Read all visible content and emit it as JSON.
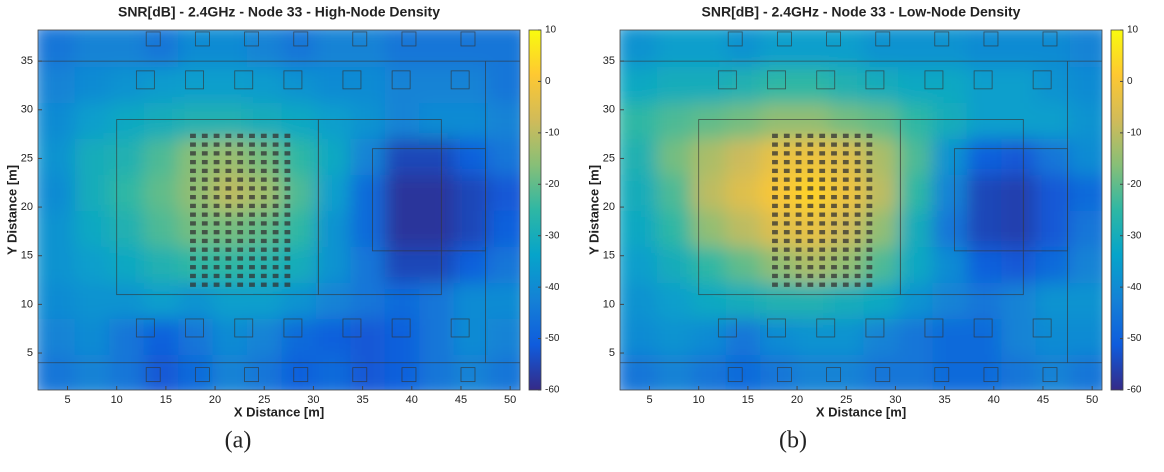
{
  "chart_data": [
    {
      "type": "heatmap",
      "title": "SNR[dB] - 2.4GHz - Node 33 - High-Node Density",
      "xlabel": "X Distance [m]",
      "ylabel": "Y Distance [m]",
      "x": [
        4,
        7.5,
        11,
        14.5,
        18,
        21.5,
        25,
        28.5,
        32,
        35.5,
        39,
        42.5,
        46,
        49.5
      ],
      "y": [
        3,
        6.7,
        10.4,
        14.1,
        17.8,
        21.5,
        25.2,
        28.9,
        32.6,
        36.3
      ],
      "z": [
        [
          -45,
          -42,
          -45,
          -52,
          -48,
          -42,
          -45,
          -50,
          -48,
          -52,
          -50,
          -45,
          -42,
          -45
        ],
        [
          -42,
          -40,
          -45,
          -50,
          -45,
          -40,
          -42,
          -48,
          -50,
          -52,
          -50,
          -45,
          -40,
          -42
        ],
        [
          -40,
          -38,
          -38,
          -35,
          -38,
          -35,
          -35,
          -38,
          -42,
          -45,
          -48,
          -45,
          -40,
          -40
        ],
        [
          -38,
          -35,
          -32,
          -28,
          -25,
          -25,
          -27,
          -30,
          -38,
          -45,
          -55,
          -55,
          -50,
          -45
        ],
        [
          -38,
          -32,
          -28,
          -22,
          -18,
          -18,
          -20,
          -25,
          -38,
          -48,
          -58,
          -58,
          -55,
          -50
        ],
        [
          -40,
          -30,
          -25,
          -20,
          -15,
          -10,
          -13,
          -22,
          -35,
          -48,
          -58,
          -58,
          -55,
          -52
        ],
        [
          -38,
          -30,
          -28,
          -22,
          -16,
          -14,
          -18,
          -25,
          -32,
          -42,
          -55,
          -55,
          -50,
          -45
        ],
        [
          -40,
          -35,
          -32,
          -30,
          -28,
          -28,
          -30,
          -32,
          -35,
          -38,
          -42,
          -40,
          -40,
          -42
        ],
        [
          -42,
          -40,
          -38,
          -36,
          -35,
          -35,
          -36,
          -38,
          -40,
          -40,
          -42,
          -42,
          -42,
          -45
        ],
        [
          -45,
          -42,
          -42,
          -45,
          -40,
          -40,
          -42,
          -45,
          -42,
          -42,
          -45,
          -45,
          -45,
          -45
        ]
      ],
      "xlim": [
        2,
        51
      ],
      "ylim": [
        1.2,
        38.2
      ],
      "xticks": [
        5,
        10,
        15,
        20,
        25,
        30,
        35,
        40,
        45,
        50
      ],
      "yticks": [
        5,
        10,
        15,
        20,
        25,
        30,
        35
      ],
      "clim": [
        -60,
        10
      ],
      "cticks": [
        -60,
        -50,
        -40,
        -30,
        -20,
        -10,
        0,
        10
      ],
      "colormap": [
        "#352a87",
        "#0f5cdd",
        "#1481d6",
        "#06a4ca",
        "#2eb7a4",
        "#87bf77",
        "#d1bb59",
        "#fec832",
        "#f9fb0e"
      ]
    },
    {
      "type": "heatmap",
      "title": "SNR[dB] - 2.4GHz - Node 33 - Low-Node Density",
      "xlabel": "X Distance [m]",
      "ylabel": "Y Distance [m]",
      "x": [
        4,
        7.5,
        11,
        14.5,
        18,
        21.5,
        25,
        28.5,
        32,
        35.5,
        39,
        42.5,
        46,
        49.5
      ],
      "y": [
        3,
        6.7,
        10.4,
        14.1,
        17.8,
        21.5,
        25.2,
        28.9,
        32.6,
        36.3
      ],
      "z": [
        [
          -45,
          -42,
          -45,
          -48,
          -45,
          -42,
          -42,
          -45,
          -45,
          -48,
          -48,
          -45,
          -42,
          -45
        ],
        [
          -40,
          -38,
          -40,
          -45,
          -40,
          -38,
          -38,
          -42,
          -45,
          -48,
          -48,
          -42,
          -40,
          -40
        ],
        [
          -38,
          -35,
          -32,
          -30,
          -28,
          -28,
          -30,
          -32,
          -38,
          -42,
          -45,
          -42,
          -38,
          -38
        ],
        [
          -35,
          -30,
          -25,
          -20,
          -15,
          -12,
          -15,
          -22,
          -32,
          -40,
          -50,
          -52,
          -48,
          -42
        ],
        [
          -32,
          -25,
          -15,
          -10,
          -5,
          -3,
          -8,
          -15,
          -30,
          -45,
          -55,
          -56,
          -52,
          -45
        ],
        [
          -30,
          -22,
          -10,
          -5,
          0,
          3,
          -2,
          -10,
          -25,
          -42,
          -55,
          -56,
          -52,
          -48
        ],
        [
          -28,
          -18,
          -12,
          -8,
          -3,
          -2,
          -5,
          -12,
          -22,
          -38,
          -50,
          -52,
          -45,
          -40
        ],
        [
          -25,
          -22,
          -20,
          -18,
          -15,
          -15,
          -18,
          -20,
          -25,
          -30,
          -35,
          -35,
          -35,
          -38
        ],
        [
          -32,
          -30,
          -30,
          -28,
          -25,
          -25,
          -28,
          -30,
          -32,
          -32,
          -35,
          -35,
          -38,
          -40
        ],
        [
          -38,
          -35,
          -35,
          -38,
          -35,
          -35,
          -35,
          -38,
          -38,
          -38,
          -40,
          -40,
          -40,
          -42
        ]
      ],
      "xlim": [
        2,
        51
      ],
      "ylim": [
        1.2,
        38.2
      ],
      "xticks": [
        5,
        10,
        15,
        20,
        25,
        30,
        35,
        40,
        45,
        50
      ],
      "yticks": [
        5,
        10,
        15,
        20,
        25,
        30,
        35
      ],
      "clim": [
        -60,
        10
      ],
      "cticks": [
        -60,
        -50,
        -40,
        -30,
        -20,
        -10,
        0,
        10
      ],
      "colormap": [
        "#352a87",
        "#0f5cdd",
        "#1481d6",
        "#06a4ca",
        "#2eb7a4",
        "#87bf77",
        "#d1bb59",
        "#fec832",
        "#f9fb0e"
      ]
    }
  ],
  "captions": [
    "(a)",
    "(b)"
  ]
}
